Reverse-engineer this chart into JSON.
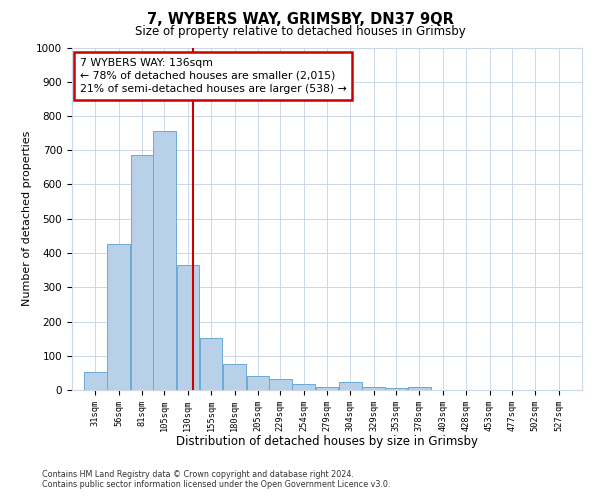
{
  "title": "7, WYBERS WAY, GRIMSBY, DN37 9QR",
  "subtitle": "Size of property relative to detached houses in Grimsby",
  "xlabel": "Distribution of detached houses by size in Grimsby",
  "ylabel": "Number of detached properties",
  "bar_heights": [
    52,
    425,
    685,
    757,
    365,
    153,
    76,
    40,
    32,
    17,
    10,
    22,
    10,
    5,
    8,
    0,
    0,
    0,
    0,
    0,
    0
  ],
  "bin_labels": [
    "31sqm",
    "56sqm",
    "81sqm",
    "105sqm",
    "130sqm",
    "155sqm",
    "180sqm",
    "205sqm",
    "229sqm",
    "254sqm",
    "279sqm",
    "304sqm",
    "329sqm",
    "353sqm",
    "378sqm",
    "403sqm",
    "428sqm",
    "453sqm",
    "477sqm",
    "502sqm",
    "527sqm"
  ],
  "bin_centers": [
    31,
    56,
    81,
    105,
    130,
    155,
    180,
    205,
    229,
    254,
    279,
    304,
    329,
    353,
    378,
    403,
    428,
    453,
    477,
    502,
    527
  ],
  "bin_width": 24,
  "bar_color": "#b8d0e8",
  "bar_edge_color": "#6aaad4",
  "grid_color": "#ccd8e8",
  "vline_x": 136,
  "vline_color": "#cc0000",
  "annotation_text": "7 WYBERS WAY: 136sqm\n← 78% of detached houses are smaller (2,015)\n21% of semi-detached houses are larger (538) →",
  "annotation_box_color": "#cc0000",
  "ylim": [
    0,
    1000
  ],
  "yticks": [
    0,
    100,
    200,
    300,
    400,
    500,
    600,
    700,
    800,
    900,
    1000
  ],
  "footer1": "Contains HM Land Registry data © Crown copyright and database right 2024.",
  "footer2": "Contains public sector information licensed under the Open Government Licence v3.0.",
  "background_color": "#ffffff",
  "xlim_left": 6,
  "xlim_right": 552
}
